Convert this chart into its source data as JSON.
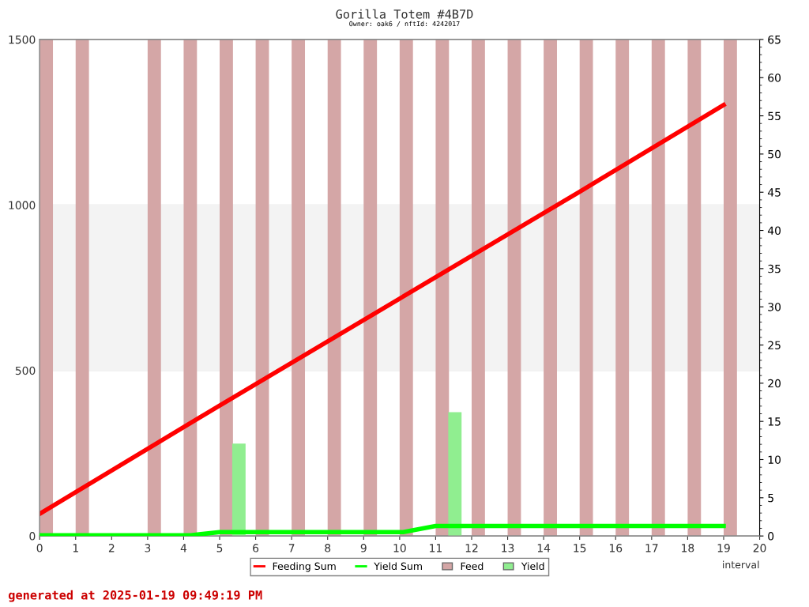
{
  "chart_data": {
    "type": "bar",
    "title": "Gorilla Totem #4B7D",
    "subtitle": "Owner: oak6 / nftId: 4242017",
    "xlabel": "interval",
    "annotations": [
      "generated at 2025-01-19 09:49:19 PM"
    ],
    "xlim": [
      0,
      20
    ],
    "xticks": [
      0,
      1,
      2,
      3,
      4,
      5,
      6,
      7,
      8,
      9,
      10,
      11,
      12,
      13,
      14,
      15,
      16,
      17,
      18,
      19,
      20
    ],
    "ylim": [
      0,
      1500
    ],
    "yticks": [
      0,
      500,
      1000,
      1500
    ],
    "y2lim": [
      0,
      65
    ],
    "y2ticks": [
      0,
      5,
      10,
      15,
      20,
      25,
      30,
      35,
      40,
      45,
      50,
      55,
      60,
      65
    ],
    "grid": "y",
    "legend": "bottom",
    "bands": [
      {
        "axis": "y",
        "from": 500,
        "to": 1000,
        "color": "#f3f3f3"
      }
    ],
    "series": [
      {
        "name": "Feeding Sum",
        "type": "line",
        "color": "#ff0000",
        "x": [
          0,
          5,
          10,
          15,
          19
        ],
        "values": [
          67,
          394,
          717,
          1040,
          1302
        ]
      },
      {
        "name": "Yield Sum",
        "type": "line",
        "axis": "y2",
        "color": "#00ff00",
        "x": [
          0,
          4.2,
          5,
          10.1,
          11,
          19
        ],
        "values": [
          0.1,
          0.1,
          0.5,
          0.5,
          1.3,
          1.3
        ]
      },
      {
        "name": "Feed",
        "color": "#d4a6a6",
        "x": [
          0,
          1,
          3,
          4,
          5,
          6,
          7,
          8,
          9,
          10,
          11,
          12,
          13,
          14,
          15,
          16,
          17,
          18,
          19
        ],
        "values": [
          1500,
          1500,
          1500,
          1500,
          1500,
          1500,
          1500,
          1500,
          1500,
          1500,
          1500,
          1500,
          1500,
          1500,
          1500,
          1500,
          1500,
          1500,
          1500
        ]
      },
      {
        "name": "Yield",
        "axis": "y2",
        "color": "#90ee90",
        "x": [
          5,
          11
        ],
        "values": [
          12.1,
          16.2
        ]
      }
    ]
  }
}
